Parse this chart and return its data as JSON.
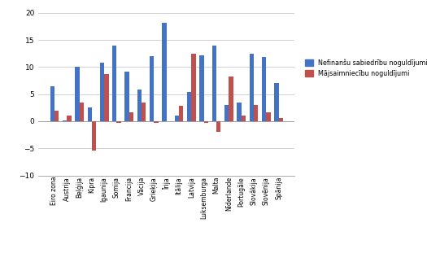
{
  "categories": [
    "Eiro zona",
    "Austrija",
    "Beļģija",
    "Kipra",
    "Igaunija",
    "Somija",
    "Francija",
    "Vācija",
    "Grieķija",
    "Īrija",
    "Itālija",
    "Latvija",
    "Luksemburga",
    "Malta",
    "Nīderlande",
    "Portugāle",
    "Slovākija",
    "Slovēnija",
    "Spānija"
  ],
  "nefinansu": [
    6.5,
    0.2,
    10.1,
    2.5,
    10.8,
    14.0,
    9.2,
    5.8,
    12.0,
    18.2,
    1.0,
    5.4,
    12.1,
    14.0,
    3.0,
    3.5,
    12.5,
    11.8,
    7.0
  ],
  "majsaimniecību": [
    2.0,
    1.0,
    3.5,
    -5.4,
    8.7,
    -0.3,
    1.7,
    3.4,
    -0.3,
    0.0,
    2.9,
    12.4,
    -0.3,
    -2.0,
    8.3,
    1.1,
    3.0,
    1.7,
    0.6
  ],
  "nefinansu_color": "#4472C4",
  "majsaimniecību_color": "#C0504D",
  "legend_nefinansu": "Nefinanšu sabiedrību noguldījumi",
  "legend_majsaimniecību": "Mājsaimniecību noguldījumi",
  "ylim": [
    -10,
    20
  ],
  "yticks": [
    -10,
    -5,
    0,
    5,
    10,
    15,
    20
  ],
  "background_color": "#FFFFFF",
  "grid_color": "#C0C0C0"
}
